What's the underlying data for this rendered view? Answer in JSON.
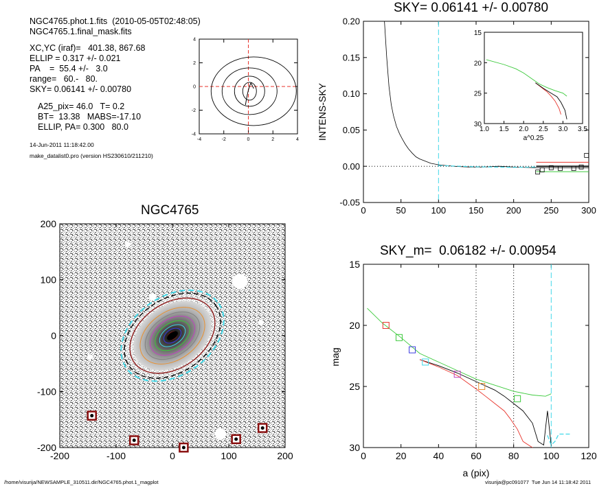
{
  "header": {
    "line1": "NGC4765.phot.1.fits  (2010-05-05T02:48:05)",
    "line2": "NGC4765.1.final_mask.fits",
    "params": [
      "XC,YC (iraf)=   401.38, 867.68",
      "ELLIP = 0.317 +/- 0.021",
      "PA    =  55.4 +/-   3.0",
      "range=   60.-   80.",
      "SKY= 0.06141 +/- 0.00780"
    ],
    "params2": [
      "A25_pix= 46.0   T= 0.2",
      "BT=  13.38   MABS=-17.10",
      "ELLIP, PA= 0.300   80.0"
    ],
    "date": "14-Jun-2011 11:18:42.00",
    "program": "make_datalist0.pro (version HS230610/211210)"
  },
  "footer": {
    "path": "/home/visurija/NEWSAMPLE_310511.dir/NGC4765.phot.1_magplot",
    "user": "visurija@pc091077  Tue Jun 14 11:18:42 2011"
  },
  "colors": {
    "red": "#e8322a",
    "green": "#3ac93a",
    "cyan": "#40d8e8",
    "blue": "#3a3ae0",
    "magenta": "#c040c0",
    "orange": "#e89030",
    "grey": "#808080",
    "darkred": "#8a1010"
  },
  "chart_data": [
    {
      "type": "contour",
      "name": "centre-contour",
      "xlim": [
        -4,
        4
      ],
      "ylim": [
        -4,
        4
      ],
      "xticks": [
        "-4",
        "-2",
        "0",
        "2",
        "4"
      ],
      "yticks": [
        "-4",
        "-2",
        "0",
        "2",
        "4"
      ]
    },
    {
      "type": "line",
      "title": "SKY= 0.06141 +/- 0.00780",
      "xlabel": "",
      "ylabel": "INTENS-SKY",
      "xlim": [
        0,
        300
      ],
      "ylim": [
        -0.05,
        0.2
      ],
      "xticks": [
        "0",
        "50",
        "100",
        "150",
        "200",
        "250",
        "300"
      ],
      "yticks": [
        "-0.05",
        "0.00",
        "0.05",
        "0.10",
        "0.15",
        "0.20"
      ],
      "vline_x": 100,
      "series": [
        {
          "x": [
            28,
            31,
            34,
            37,
            40,
            44,
            48,
            52,
            56,
            60,
            65,
            70,
            75,
            80,
            85,
            90,
            95,
            100,
            110,
            120,
            140,
            160,
            180,
            200,
            230,
            260,
            300
          ],
          "y": [
            0.2,
            0.15,
            0.11,
            0.085,
            0.07,
            0.055,
            0.045,
            0.037,
            0.03,
            0.024,
            0.018,
            0.013,
            0.01,
            0.008,
            0.006,
            0.004,
            0.003,
            0.002,
            0.001,
            0.0,
            -0.001,
            -0.001,
            0.0,
            -0.001,
            -0.002,
            -0.002,
            -0.002
          ]
        }
      ],
      "markers": [
        {
          "x": 232,
          "y": -0.008
        },
        {
          "x": 238,
          "y": -0.005
        },
        {
          "x": 250,
          "y": -0.002
        },
        {
          "x": 262,
          "y": -0.003
        },
        {
          "x": 280,
          "y": -0.003
        },
        {
          "x": 290,
          "y": -0.001
        },
        {
          "x": 297,
          "y": 0.015
        }
      ],
      "hlines": [
        {
          "y": 0.0055,
          "color": "red",
          "from": 230
        },
        {
          "y": -0.0075,
          "color": "green",
          "from": 230
        },
        {
          "y": 0.0,
          "color": "black",
          "from": 230
        }
      ],
      "inset": {
        "xlabel": "a^0.25",
        "xlim": [
          1.0,
          3.5
        ],
        "ylim": [
          15,
          30
        ],
        "xticks": [
          "1.0",
          "1.5",
          "2.0",
          "2.5",
          "3.0",
          "3.5"
        ],
        "yticks": [
          "15",
          "20",
          "25",
          "30"
        ],
        "series": [
          {
            "color": "green",
            "x": [
              1.05,
              1.5,
              1.8,
              2.0,
              2.2,
              2.4,
              2.6,
              2.8,
              3.0,
              3.1
            ],
            "y": [
              19.5,
              20.3,
              21.0,
              21.7,
              22.6,
              23.5,
              24.1,
              24.6,
              25.0,
              25.5
            ]
          },
          {
            "color": "red",
            "x": [
              2.3,
              2.5,
              2.6,
              2.7,
              2.8,
              2.9,
              2.95
            ],
            "y": [
              23.3,
              24.3,
              24.8,
              25.5,
              26.3,
              27.5,
              28.5
            ]
          },
          {
            "color": "black",
            "x": [
              2.3,
              2.5,
              2.7,
              2.85,
              2.95,
              3.05,
              3.1
            ],
            "y": [
              23.3,
              24.2,
              25.0,
              25.6,
              26.5,
              27.8,
              29.3
            ]
          }
        ]
      }
    },
    {
      "type": "image",
      "title": "NGC4765",
      "xlim": [
        -200,
        200
      ],
      "ylim": [
        -200,
        200
      ],
      "xticks": [
        "-200",
        "-100",
        "0",
        "100",
        "200"
      ],
      "yticks": [
        "-200",
        "-100",
        "0",
        "100",
        "200"
      ],
      "masked_stars": [
        [
          -143,
          -143
        ],
        [
          -68,
          -187
        ],
        [
          20,
          -200
        ],
        [
          113,
          -185
        ],
        [
          160,
          -165
        ]
      ]
    },
    {
      "type": "line",
      "title": "SKY_m=  0.06182 +/- 0.00954",
      "xlabel": "a (pix)",
      "ylabel": "mag",
      "xlim": [
        0,
        120
      ],
      "ylim": [
        30,
        15
      ],
      "xticks": [
        "0",
        "20",
        "40",
        "60",
        "80",
        "100",
        "120"
      ],
      "yticks": [
        "15",
        "20",
        "25",
        "30"
      ],
      "vlines_dotted": [
        60,
        80
      ],
      "vline_dashed": 100,
      "series": [
        {
          "color": "green",
          "x": [
            2,
            10,
            20,
            30,
            40,
            50,
            60,
            70,
            80,
            90,
            97,
            100
          ],
          "y": [
            18.6,
            19.8,
            21.0,
            22.3,
            23.0,
            23.7,
            24.4,
            24.9,
            25.4,
            25.7,
            25.8,
            25.6
          ]
        },
        {
          "color": "black",
          "x": [
            30,
            40,
            50,
            60,
            70,
            75,
            80,
            85,
            90,
            93,
            96,
            98,
            100
          ],
          "y": [
            22.8,
            23.3,
            23.9,
            24.6,
            25.3,
            25.8,
            26.4,
            27.0,
            28.0,
            29.5,
            29.8,
            27.0,
            29.8
          ]
        },
        {
          "color": "red",
          "x": [
            30,
            40,
            50,
            60,
            65,
            70,
            75,
            78,
            82,
            85,
            90
          ],
          "y": [
            22.8,
            23.4,
            24.1,
            25.2,
            25.8,
            26.4,
            27.0,
            27.6,
            28.5,
            29.5,
            30.0
          ]
        }
      ],
      "squares": [
        {
          "x": 12,
          "y": 20.0,
          "color": "red"
        },
        {
          "x": 19,
          "y": 21.0,
          "color": "green"
        },
        {
          "x": 26,
          "y": 22.0,
          "color": "blue"
        },
        {
          "x": 33,
          "y": 23.0,
          "color": "cyan"
        },
        {
          "x": 50,
          "y": 24.0,
          "color": "magenta"
        },
        {
          "x": 63,
          "y": 25.0,
          "color": "orange"
        },
        {
          "x": 82,
          "y": 26.0,
          "color": "green"
        }
      ],
      "cyan_tail": {
        "x": [
          98,
          100,
          102,
          104,
          110
        ],
        "y": [
          29.0,
          29.8,
          29.5,
          28.9,
          28.9
        ]
      }
    }
  ]
}
